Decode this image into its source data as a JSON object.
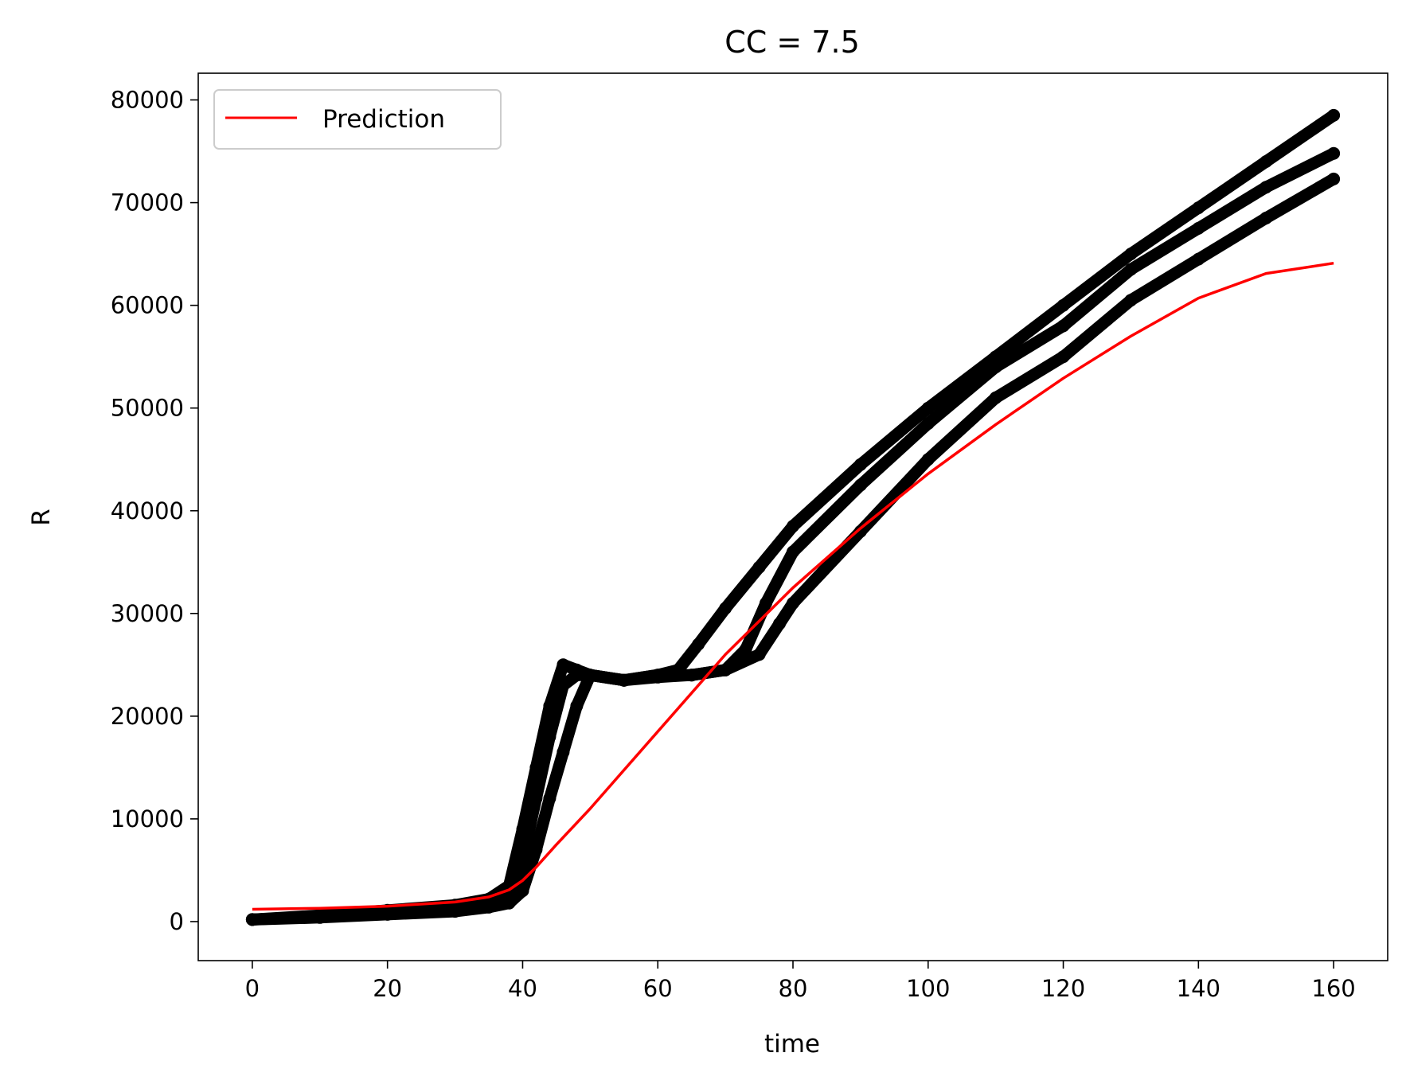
{
  "chart_data": {
    "type": "line",
    "title": "CC = 7.5",
    "xlabel": "time",
    "ylabel": "R",
    "xlim": [
      -8,
      168
    ],
    "ylim": [
      -3800,
      82600
    ],
    "xticks": [
      0,
      20,
      40,
      60,
      80,
      100,
      120,
      140,
      160
    ],
    "yticks": [
      0,
      10000,
      20000,
      30000,
      40000,
      50000,
      60000,
      70000,
      80000
    ],
    "grid": false,
    "legend": {
      "position": "top-left",
      "entries": [
        "Prediction"
      ]
    },
    "colors": {
      "prediction": "#ff0000",
      "observed": "#000000"
    },
    "prediction": {
      "name": "Prediction",
      "x": [
        0,
        10,
        20,
        30,
        35,
        38,
        40,
        42,
        45,
        50,
        60,
        70,
        80,
        90,
        100,
        110,
        120,
        130,
        140,
        150,
        160
      ],
      "y": [
        1200,
        1300,
        1500,
        1900,
        2400,
        3100,
        4000,
        5300,
        7500,
        11000,
        18500,
        26000,
        32500,
        38300,
        43600,
        48400,
        52900,
        57000,
        60700,
        63100,
        64100
      ]
    },
    "observed": [
      {
        "x": [
          0,
          10,
          20,
          30,
          35,
          38,
          40,
          42,
          44,
          46,
          48,
          50,
          55,
          60,
          63,
          66,
          70,
          75,
          80,
          90,
          100,
          110,
          120,
          130,
          140,
          150,
          160
        ],
        "y": [
          200,
          600,
          1100,
          1600,
          2200,
          3500,
          9000,
          15000,
          21000,
          25000,
          24500,
          24000,
          23500,
          24000,
          24500,
          27000,
          30500,
          34500,
          38500,
          44500,
          50000,
          55000,
          60000,
          65000,
          69500,
          74000,
          78500
        ]
      },
      {
        "x": [
          0,
          10,
          20,
          30,
          35,
          38,
          40,
          42,
          44,
          46,
          48,
          50,
          55,
          60,
          65,
          70,
          73,
          76,
          80,
          90,
          100,
          110,
          120,
          130,
          140,
          150,
          160
        ],
        "y": [
          200,
          500,
          900,
          1300,
          1800,
          2600,
          6000,
          12000,
          18000,
          23000,
          24000,
          24000,
          23500,
          23800,
          24000,
          24500,
          26500,
          31000,
          36000,
          42500,
          48500,
          54000,
          58000,
          63500,
          67500,
          71500,
          74800
        ]
      },
      {
        "x": [
          0,
          10,
          20,
          30,
          35,
          38,
          40,
          42,
          44,
          46,
          48,
          50,
          55,
          60,
          65,
          70,
          75,
          78,
          80,
          90,
          100,
          110,
          120,
          130,
          140,
          150,
          160
        ],
        "y": [
          200,
          400,
          700,
          1000,
          1400,
          1800,
          3000,
          7000,
          12000,
          16500,
          21000,
          24000,
          23500,
          24000,
          24000,
          24500,
          26000,
          29000,
          31000,
          38000,
          45000,
          51000,
          55000,
          60500,
          64500,
          68500,
          72300
        ]
      }
    ]
  }
}
